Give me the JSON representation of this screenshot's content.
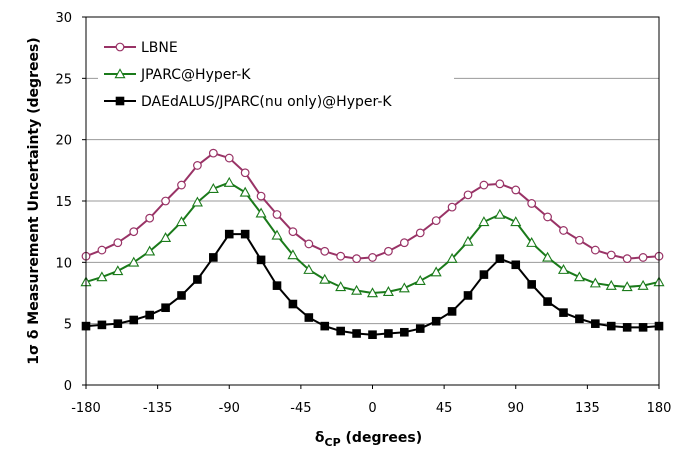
{
  "chart_data": {
    "type": "line",
    "xlabel": {
      "main": "δ",
      "sub": "CP",
      "rest": " (degrees)"
    },
    "ylabel": "1σ δ Measurement Uncertainty (degrees)",
    "xlim": [
      -180,
      180
    ],
    "ylim": [
      0,
      30
    ],
    "xticks": [
      -180,
      -135,
      -90,
      -45,
      0,
      45,
      90,
      135,
      180
    ],
    "yticks": [
      0,
      5,
      10,
      15,
      20,
      25,
      30
    ],
    "grid": "horizontal",
    "legend_position": "top-left",
    "x": [
      -180,
      -170,
      -160,
      -150,
      -140,
      -130,
      -120,
      -110,
      -100,
      -90,
      -80,
      -70,
      -60,
      -50,
      -40,
      -30,
      -20,
      -10,
      0,
      10,
      20,
      30,
      40,
      50,
      60,
      70,
      80,
      90,
      100,
      110,
      120,
      130,
      140,
      150,
      160,
      170,
      180
    ],
    "series": [
      {
        "name": "LBNE",
        "color": "#993366",
        "marker": "circle-open",
        "values": [
          10.5,
          11.0,
          11.6,
          12.5,
          13.6,
          15.0,
          16.3,
          17.9,
          18.9,
          18.5,
          17.3,
          15.4,
          13.9,
          12.5,
          11.5,
          10.9,
          10.5,
          10.3,
          10.4,
          10.9,
          11.6,
          12.4,
          13.4,
          14.5,
          15.5,
          16.3,
          16.4,
          15.9,
          14.8,
          13.7,
          12.6,
          11.8,
          11.0,
          10.6,
          10.3,
          10.4,
          10.5
        ]
      },
      {
        "name": "JPARC@Hyper-K",
        "color": "#1a7a1a",
        "marker": "triangle-open",
        "values": [
          8.4,
          8.8,
          9.3,
          10.0,
          10.9,
          12.0,
          13.3,
          14.9,
          16.0,
          16.5,
          15.7,
          14.0,
          12.2,
          10.6,
          9.4,
          8.6,
          8.0,
          7.7,
          7.5,
          7.6,
          7.9,
          8.5,
          9.2,
          10.3,
          11.7,
          13.3,
          13.9,
          13.3,
          11.6,
          10.4,
          9.4,
          8.8,
          8.3,
          8.1,
          8.0,
          8.1,
          8.4
        ]
      },
      {
        "name": "DAEdALUS/JPARC(nu only)@Hyper-K",
        "color": "#000000",
        "marker": "square-filled",
        "values": [
          4.8,
          4.9,
          5.0,
          5.3,
          5.7,
          6.3,
          7.3,
          8.6,
          10.4,
          12.3,
          12.3,
          10.2,
          8.1,
          6.6,
          5.5,
          4.8,
          4.4,
          4.2,
          4.1,
          4.2,
          4.3,
          4.6,
          5.2,
          6.0,
          7.3,
          9.0,
          10.3,
          9.8,
          8.2,
          6.8,
          5.9,
          5.4,
          5.0,
          4.8,
          4.7,
          4.7,
          4.8
        ]
      }
    ]
  }
}
